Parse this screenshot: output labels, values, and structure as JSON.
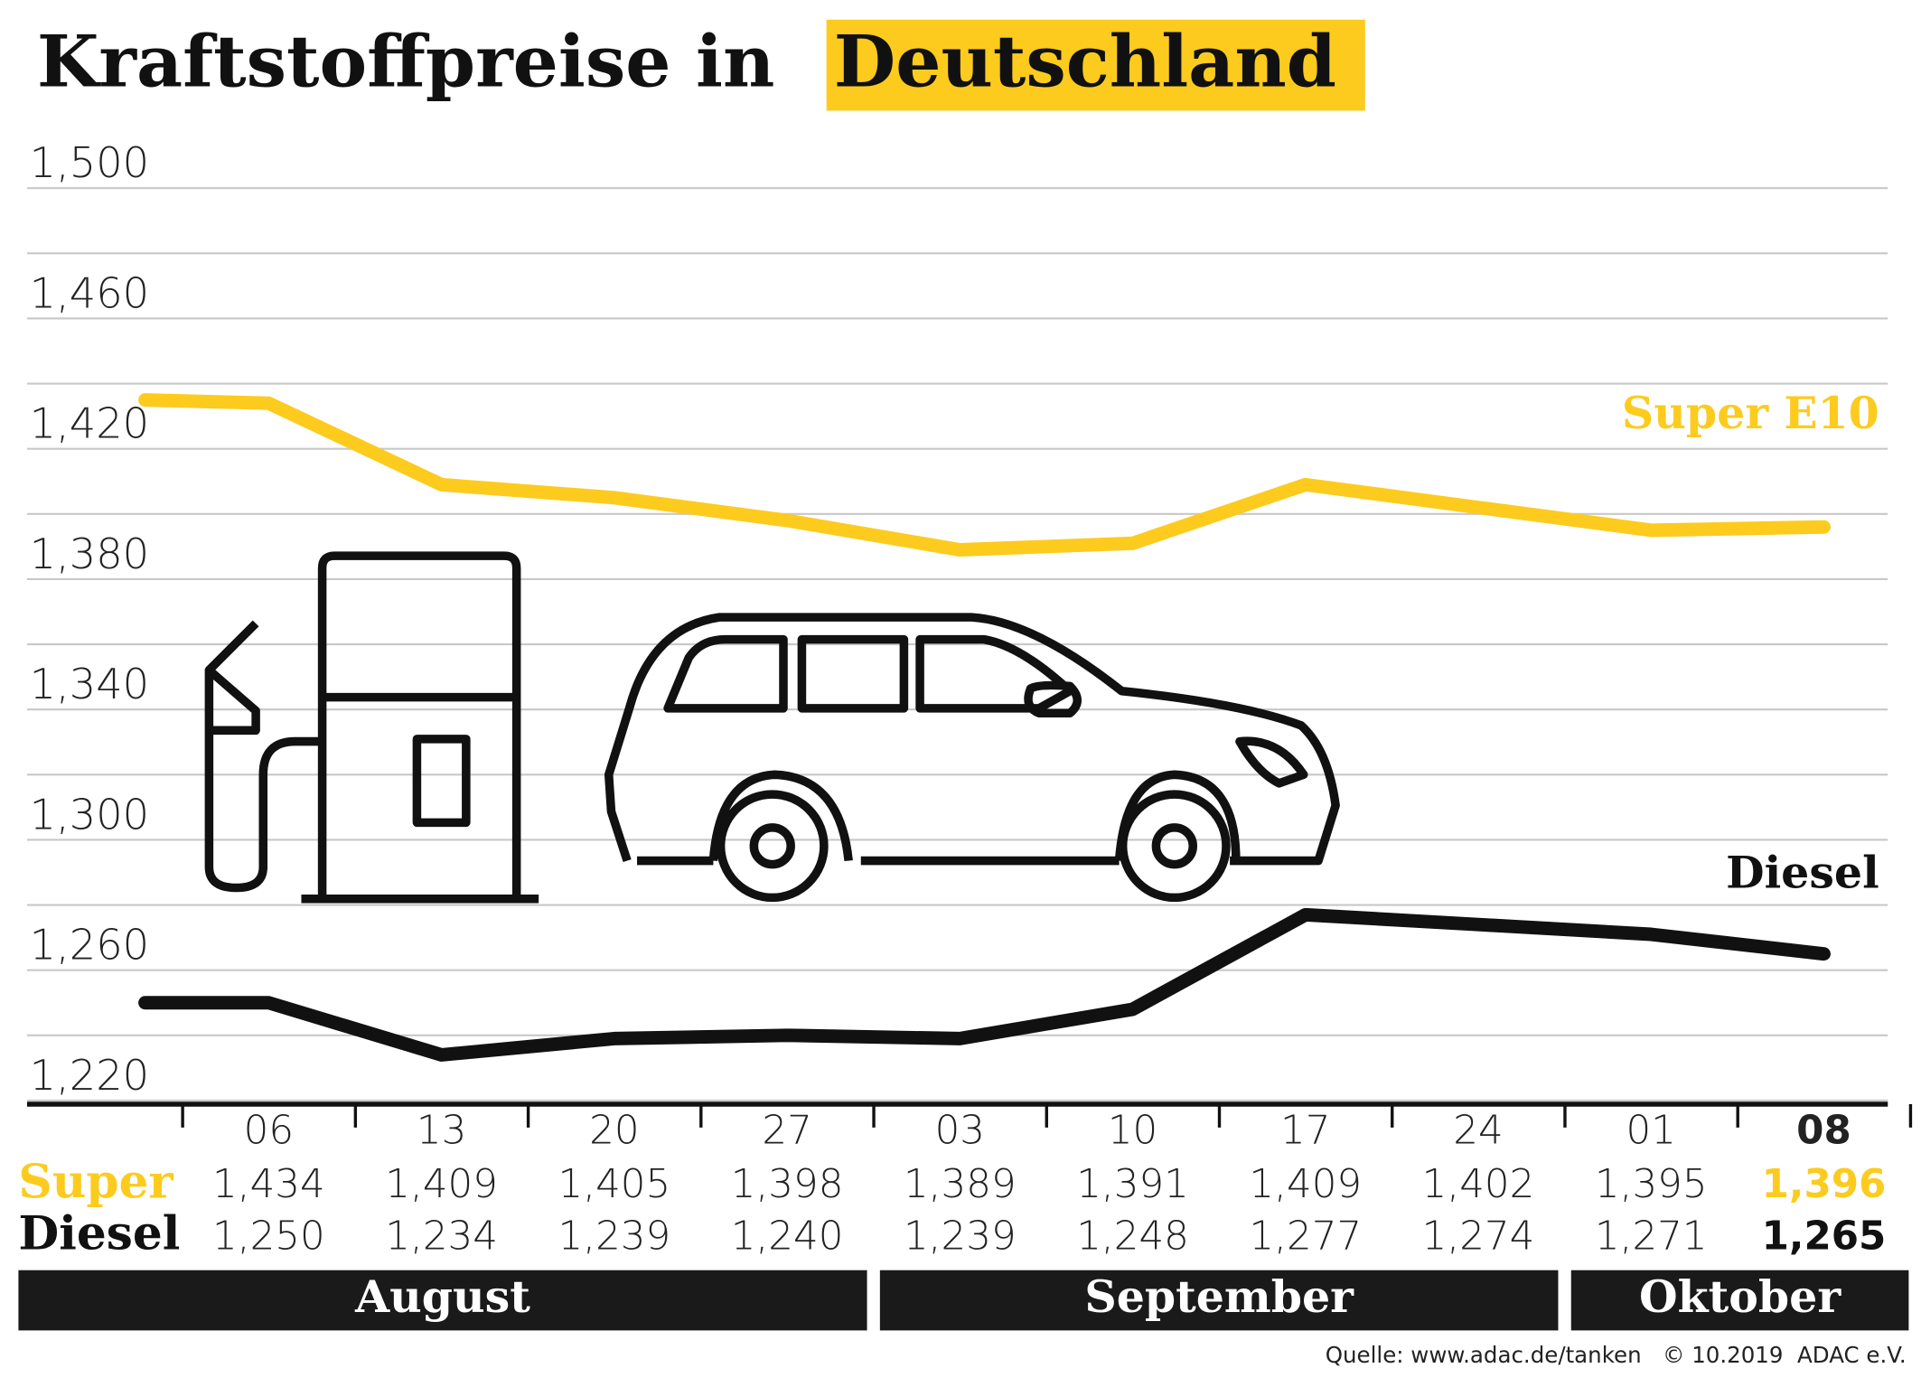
{
  "chart_data": {
    "type": "line",
    "title": "Kraftstoffpreise in",
    "title_highlight": "Deutschland",
    "categories": [
      null,
      "06",
      "13",
      "20",
      "27",
      "03",
      "10",
      "17",
      "24",
      "01",
      "08"
    ],
    "series": [
      {
        "name": "Super E10",
        "color": "#fccb1e",
        "values": [
          1.435,
          1.434,
          1.409,
          1.405,
          1.398,
          1.389,
          1.391,
          1.409,
          1.402,
          1.395,
          1.396
        ],
        "value_labels": [
          null,
          "1,434",
          "1,409",
          "1,405",
          "1,398",
          "1,389",
          "1,391",
          "1,409",
          "1,402",
          "1,395",
          "1,396"
        ]
      },
      {
        "name": "Diesel",
        "color": "#111111",
        "values": [
          1.25,
          1.25,
          1.234,
          1.239,
          1.24,
          1.239,
          1.248,
          1.277,
          1.274,
          1.271,
          1.265
        ],
        "value_labels": [
          null,
          "1,250",
          "1,234",
          "1,239",
          "1,240",
          "1,239",
          "1,248",
          "1,277",
          "1,274",
          "1,271",
          "1,265"
        ]
      }
    ],
    "table_row_labels": [
      "Super",
      "Diesel"
    ],
    "ylim": [
      1.22,
      1.5
    ],
    "yticks": [
      {
        "value": 1.22,
        "label": "1,220"
      },
      {
        "value": 1.26,
        "label": "1,260"
      },
      {
        "value": 1.3,
        "label": "1,300"
      },
      {
        "value": 1.34,
        "label": "1,340"
      },
      {
        "value": 1.38,
        "label": "1,380"
      },
      {
        "value": 1.42,
        "label": "1,420"
      },
      {
        "value": 1.46,
        "label": "1,460"
      },
      {
        "value": 1.5,
        "label": "1,500"
      }
    ],
    "minor_yticks": [
      1.24,
      1.28,
      1.32,
      1.36,
      1.4,
      1.44,
      1.48
    ],
    "grid": true,
    "months": [
      "August",
      "September",
      "Oktober"
    ],
    "source": "Quelle: www.adac.de/tanken   © 10.2019  ADAC e.V."
  }
}
